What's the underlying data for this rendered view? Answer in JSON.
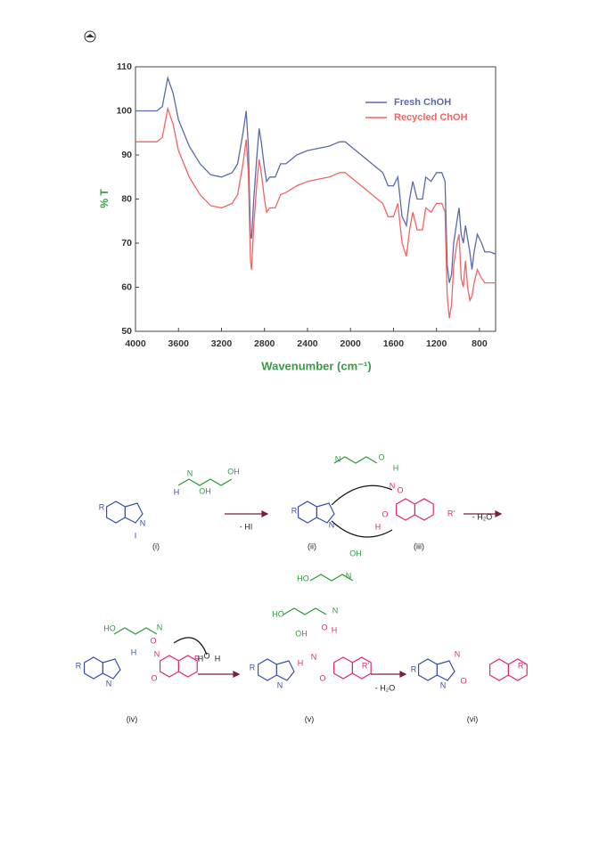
{
  "chart_data": {
    "type": "line",
    "xlabel": "Wavenumber (cm⁻¹)",
    "ylabel": "% T",
    "x": [
      4000,
      3800,
      3750,
      3700,
      3650,
      3600,
      3500,
      3400,
      3300,
      3200,
      3100,
      3050,
      3000,
      2970,
      2950,
      2930,
      2920,
      2900,
      2870,
      2850,
      2830,
      2800,
      2780,
      2750,
      2700,
      2650,
      2600,
      2500,
      2400,
      2300,
      2200,
      2100,
      2050,
      2000,
      1900,
      1800,
      1700,
      1650,
      1600,
      1560,
      1520,
      1480,
      1450,
      1420,
      1380,
      1330,
      1300,
      1250,
      1200,
      1150,
      1120,
      1100,
      1080,
      1060,
      1040,
      1010,
      990,
      970,
      950,
      930,
      910,
      890,
      870,
      850,
      820,
      780,
      750,
      700,
      650
    ],
    "series": [
      {
        "name": "Fresh ChOH",
        "color": "#5a6aa8",
        "values": [
          100,
          100,
          101,
          107.5,
          104,
          98,
          92,
          88,
          85.5,
          85,
          86,
          88,
          95,
          100,
          92,
          72,
          71,
          80,
          90,
          96,
          93,
          87,
          84,
          85,
          85,
          88,
          88,
          90,
          91,
          91.5,
          92,
          93,
          93,
          92,
          90,
          88,
          86,
          83,
          83,
          85,
          76,
          74,
          80,
          84,
          80,
          80,
          85,
          84,
          86,
          86,
          84,
          65,
          61,
          63,
          70,
          75,
          78,
          72,
          70,
          74,
          71,
          68,
          64,
          68,
          72,
          70,
          68,
          68,
          67.5
        ]
      },
      {
        "name": "Recycled ChOH",
        "color": "#f26464",
        "values": [
          93,
          93,
          94,
          100.5,
          97,
          91,
          85,
          81,
          78.5,
          78,
          79,
          81,
          88,
          93.5,
          86,
          66,
          64,
          74,
          84,
          89,
          86,
          80,
          77,
          78,
          78,
          81,
          81.5,
          83,
          84,
          84.5,
          85,
          86,
          86,
          85,
          83,
          81,
          79,
          76,
          76,
          79,
          70,
          67,
          73,
          77,
          73,
          73,
          78,
          77,
          79,
          79,
          77,
          58,
          53,
          56,
          65,
          70,
          72,
          62,
          60,
          66,
          60,
          57,
          58,
          61,
          64,
          62,
          61,
          61,
          61
        ]
      }
    ],
    "xlim": [
      4000,
      650
    ],
    "xticks": [
      4000,
      3600,
      3200,
      2800,
      2400,
      2000,
      1600,
      1200,
      800
    ],
    "ylim": [
      50,
      110
    ],
    "yticks": [
      50,
      60,
      70,
      80,
      90,
      100,
      110
    ],
    "legend": "upper-right"
  },
  "scheme": {
    "structures": [
      {
        "label": "(i)",
        "texts": [
          "R",
          "N",
          "I",
          "H",
          "OH",
          "N",
          "OH"
        ]
      },
      {
        "label": "(ii)",
        "texts": [
          "R",
          "N"
        ]
      },
      {
        "label": "(iii)",
        "texts": [
          "N",
          "O",
          "O",
          "H",
          "R'",
          "N",
          "O",
          "H",
          "OH",
          "HO",
          "N"
        ]
      },
      {
        "label": "(iv)",
        "texts": [
          "R",
          "N",
          "H",
          "N",
          "O",
          "O",
          "R'",
          "HO",
          "N",
          "O",
          "H",
          "H"
        ]
      },
      {
        "label": "(v)",
        "texts": [
          "R",
          "N",
          "H",
          "N",
          "O",
          "H",
          "O",
          "R'",
          "HO",
          "N",
          "OH"
        ]
      },
      {
        "label": "(vi)",
        "texts": [
          "R",
          "N",
          "N",
          "O",
          "R'"
        ]
      }
    ],
    "conditions": [
      "- HI",
      "- H₂O",
      "- H₂O"
    ]
  }
}
